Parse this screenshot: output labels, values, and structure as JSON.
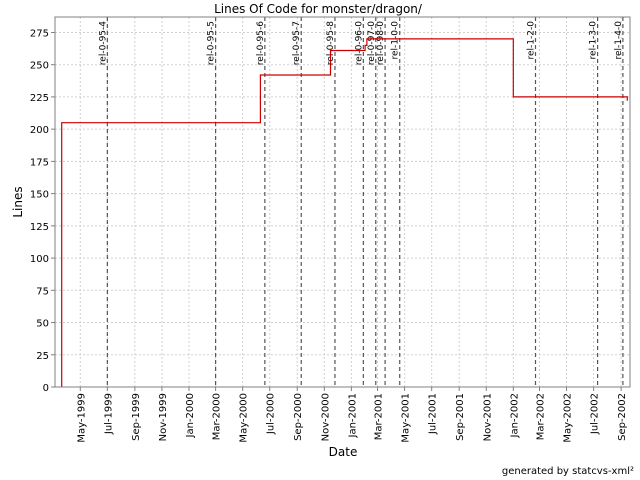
{
  "chart_data": {
    "type": "line",
    "title": "Lines Of Code for monster/dragon/",
    "xlabel": "Date",
    "ylabel": "Lines",
    "credit": "generated by statcvs-xml²",
    "ylim": [
      0,
      287
    ],
    "xlim": [
      "1999-03-05",
      "2002-09-21"
    ],
    "y_ticks": [
      0,
      25,
      50,
      75,
      100,
      125,
      150,
      175,
      200,
      225,
      250,
      275
    ],
    "x_ticks": [
      {
        "date": "1999-05-01",
        "label": "May-1999"
      },
      {
        "date": "1999-07-01",
        "label": "Jul-1999"
      },
      {
        "date": "1999-09-01",
        "label": "Sep-1999"
      },
      {
        "date": "1999-11-01",
        "label": "Nov-1999"
      },
      {
        "date": "2000-01-01",
        "label": "Jan-2000"
      },
      {
        "date": "2000-03-01",
        "label": "Mar-2000"
      },
      {
        "date": "2000-05-01",
        "label": "May-2000"
      },
      {
        "date": "2000-07-01",
        "label": "Jul-2000"
      },
      {
        "date": "2000-09-01",
        "label": "Sep-2000"
      },
      {
        "date": "2000-11-01",
        "label": "Nov-2000"
      },
      {
        "date": "2001-01-01",
        "label": "Jan-2001"
      },
      {
        "date": "2001-03-01",
        "label": "Mar-2001"
      },
      {
        "date": "2001-05-01",
        "label": "May-2001"
      },
      {
        "date": "2001-07-01",
        "label": "Jul-2001"
      },
      {
        "date": "2001-09-01",
        "label": "Sep-2001"
      },
      {
        "date": "2001-11-01",
        "label": "Nov-2001"
      },
      {
        "date": "2002-01-01",
        "label": "Jan-2002"
      },
      {
        "date": "2002-03-01",
        "label": "Mar-2002"
      },
      {
        "date": "2002-05-01",
        "label": "May-2002"
      },
      {
        "date": "2002-07-01",
        "label": "Jul-2002"
      },
      {
        "date": "2002-09-01",
        "label": "Sep-2002"
      }
    ],
    "series": [
      {
        "color": "#cc0000",
        "step": true,
        "points": [
          {
            "x": "1999-03-20",
            "y": 0
          },
          {
            "x": "1999-03-20",
            "y": 205
          },
          {
            "x": "2000-06-10",
            "y": 205
          },
          {
            "x": "2000-06-10",
            "y": 242
          },
          {
            "x": "2000-11-15",
            "y": 242
          },
          {
            "x": "2000-11-15",
            "y": 261
          },
          {
            "x": "2001-02-01",
            "y": 261
          },
          {
            "x": "2001-02-01",
            "y": 265
          },
          {
            "x": "2001-02-05",
            "y": 265
          },
          {
            "x": "2001-02-05",
            "y": 270
          },
          {
            "x": "2002-01-01",
            "y": 270
          },
          {
            "x": "2002-01-01",
            "y": 225
          },
          {
            "x": "2002-09-15",
            "y": 225
          },
          {
            "x": "2002-09-15",
            "y": 222
          }
        ]
      }
    ],
    "markers": [
      {
        "date": "1999-07-01",
        "label": "rel-0-95-4"
      },
      {
        "date": "2000-03-01",
        "label": "rel-0-95-5"
      },
      {
        "date": "2000-06-20",
        "label": "rel-0-95-6"
      },
      {
        "date": "2000-09-10",
        "label": "rel-0-95-7"
      },
      {
        "date": "2000-11-25",
        "label": "rel-0-95-8"
      },
      {
        "date": "2001-01-28",
        "label": "rel-0-96-0"
      },
      {
        "date": "2001-02-25",
        "label": "rel-0-97-0"
      },
      {
        "date": "2001-03-18",
        "label": "rel-0-98-0"
      },
      {
        "date": "2001-04-20",
        "label": "rel-1-0-0"
      },
      {
        "date": "2002-02-20",
        "label": "rel-1-2-0"
      },
      {
        "date": "2002-07-10",
        "label": "rel-1-3-0"
      },
      {
        "date": "2002-09-05",
        "label": "rel-1-4-0"
      }
    ],
    "grid": true,
    "marker_color": "#555555",
    "grid_color": "#d0d0d0"
  }
}
